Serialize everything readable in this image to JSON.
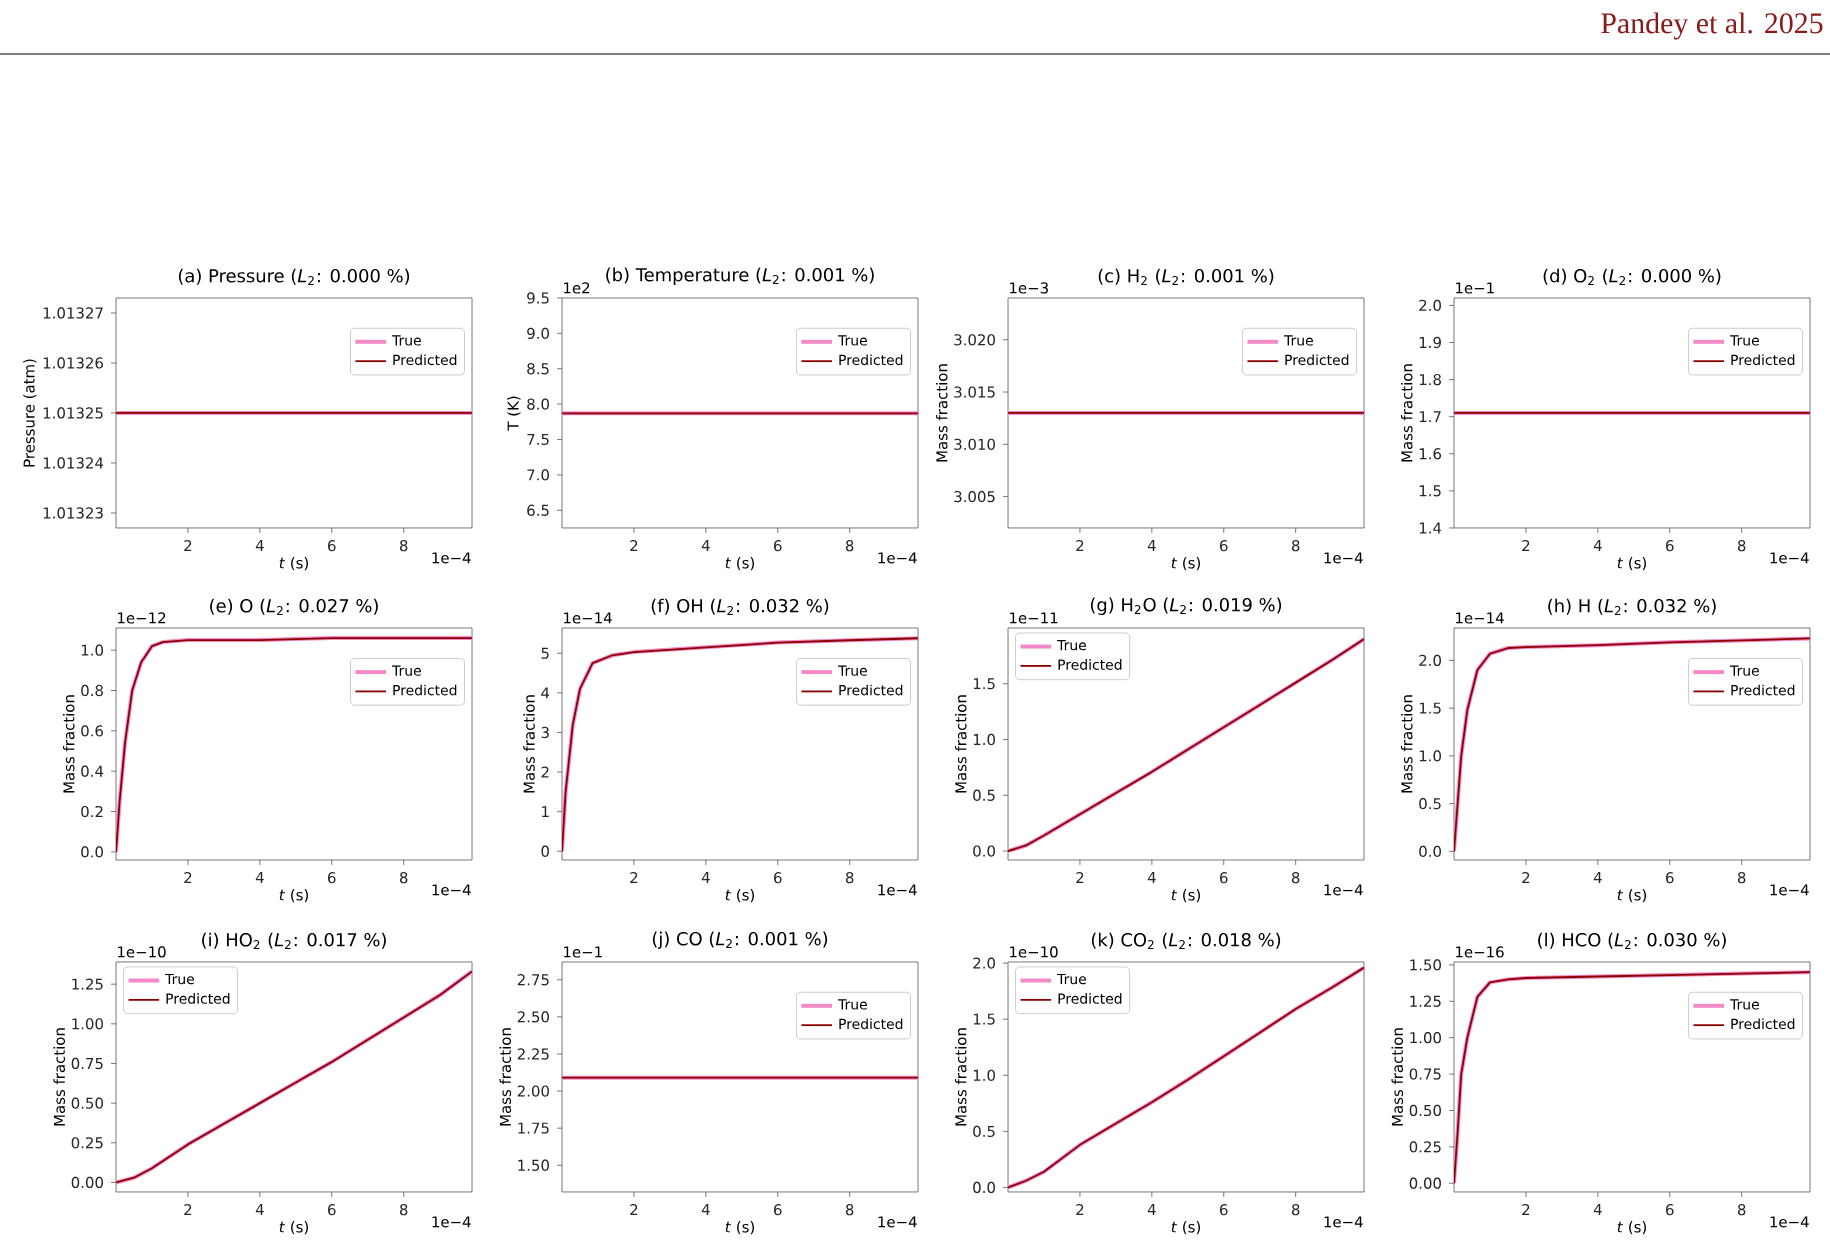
{
  "chart_data": [
    {
      "type": "line",
      "title": "(a) Pressure (*L*$_{2}$: 0.000 %)",
      "xlabel": "*t* (s)",
      "ylabel": "Pressure (atm)",
      "x": [
        0,
        9.9
      ],
      "xlim": [
        0,
        9.9
      ],
      "xticks": [
        2,
        4,
        6,
        8
      ],
      "ylim": [
        1.013227,
        1.013273
      ],
      "yticks": [
        1.01323,
        1.01324,
        1.01325,
        1.01326,
        1.01327
      ],
      "legend": "top right",
      "annotations": [
        "1e−4",
        "Pandey et al. 2025"
      ],
      "series": [
        {
          "name": "True",
          "color": "#f38ac8",
          "values": [
            1.01325,
            1.01325
          ]
        },
        {
          "name": "Predicted",
          "color": "#8b0000",
          "values": [
            1.01325,
            1.01325
          ]
        }
      ]
    },
    {
      "type": "line",
      "title": "(b) Temperature (*L*$_{2}$: 0.001 %)",
      "xlabel": "*t* (s)",
      "ylabel": "T (K)",
      "x": [
        0,
        9.9
      ],
      "xlim": [
        0,
        9.9
      ],
      "xticks": [
        2,
        4,
        6,
        8
      ],
      "ylim": [
        6.25,
        9.5
      ],
      "yticks": [
        6.5,
        {
          "value": 7,
          "label": "7.0"
        },
        7.5,
        {
          "value": 8,
          "label": "8.0"
        },
        8.5,
        {
          "value": 9,
          "label": "9.0"
        },
        9.5
      ],
      "legend": "top right",
      "annotations": [
        "1e−4",
        "1e2"
      ],
      "series": [
        {
          "name": "True",
          "color": "#f38ac8",
          "values": [
            7.87,
            7.87
          ]
        },
        {
          "name": "Predicted",
          "color": "#8b0000",
          "values": [
            7.87,
            7.87
          ]
        }
      ]
    },
    {
      "type": "line",
      "title": "(c) H$_{2}$ (*L*$_{2}$: 0.001 %)",
      "xlabel": "*t* (s)",
      "ylabel": "Mass fraction",
      "x": [
        0,
        9.9
      ],
      "xlim": [
        0,
        9.9
      ],
      "xticks": [
        2,
        4,
        6,
        8
      ],
      "ylim": [
        3.002,
        3.024
      ],
      "yticks": [
        3.005,
        {
          "value": 3.01,
          "label": "3.010"
        },
        3.015,
        {
          "value": 3.02,
          "label": "3.020"
        }
      ],
      "legend": "top right",
      "annotations": [
        "1e−4",
        "1e−3"
      ],
      "series": [
        {
          "name": "True",
          "color": "#f38ac8",
          "values": [
            3.013,
            3.013
          ]
        },
        {
          "name": "Predicted",
          "color": "#8b0000",
          "values": [
            3.013,
            3.013
          ]
        }
      ]
    },
    {
      "type": "line",
      "title": "(d) O$_{2}$ (*L*$_{2}$: 0.000 %)",
      "xlabel": "*t* (s)",
      "ylabel": "Mass fraction",
      "x": [
        0,
        9.9
      ],
      "xlim": [
        0,
        9.9
      ],
      "xticks": [
        2,
        4,
        6,
        8
      ],
      "ylim": [
        1.4,
        2.02
      ],
      "yticks": [
        1.4,
        1.5,
        1.6,
        1.7,
        1.8,
        1.9,
        {
          "value": 2,
          "label": "2.0"
        }
      ],
      "legend": "top right",
      "annotations": [
        "1e−4",
        "1e−1"
      ],
      "series": [
        {
          "name": "True",
          "color": "#f38ac8",
          "values": [
            1.71,
            1.71
          ]
        },
        {
          "name": "Predicted",
          "color": "#8b0000",
          "values": [
            1.71,
            1.71
          ]
        }
      ]
    },
    {
      "type": "line",
      "title": "(e) O (*L*$_{2}$: 0.027 %)",
      "xlabel": "*t* (s)",
      "ylabel": "Mass fraction",
      "x": [
        0,
        0.1,
        0.25,
        0.45,
        0.7,
        1.0,
        1.3,
        2,
        4,
        6,
        8,
        9.9
      ],
      "xlim": [
        0,
        9.9
      ],
      "xticks": [
        2,
        4,
        6,
        8
      ],
      "ylim": [
        -0.04,
        1.11
      ],
      "yticks": [
        {
          "value": 0,
          "label": "0.0"
        },
        0.2,
        0.4,
        0.6,
        0.8,
        {
          "value": 1,
          "label": "1.0"
        }
      ],
      "legend": "top right",
      "annotations": [
        "1e−4",
        "1e−12"
      ],
      "series": [
        {
          "name": "True",
          "color": "#f38ac8",
          "values": [
            0,
            0.25,
            0.54,
            0.8,
            0.94,
            1.02,
            1.04,
            1.05,
            1.05,
            1.06,
            1.06,
            1.06
          ]
        },
        {
          "name": "Predicted",
          "color": "#8b0000",
          "values": [
            0,
            0.25,
            0.54,
            0.8,
            0.94,
            1.02,
            1.04,
            1.05,
            1.05,
            1.06,
            1.06,
            1.06
          ]
        }
      ]
    },
    {
      "type": "line",
      "title": "(f) OH (*L*$_{2}$: 0.032 %)",
      "xlabel": "*t* (s)",
      "ylabel": "Mass fraction",
      "x": [
        0,
        0.1,
        0.3,
        0.5,
        0.85,
        1.4,
        2,
        4,
        6,
        8,
        9.9
      ],
      "xlim": [
        0,
        9.9
      ],
      "xticks": [
        2,
        4,
        6,
        8
      ],
      "ylim": [
        -0.22,
        5.64
      ],
      "yticks": [
        0,
        1,
        2,
        3,
        4,
        5
      ],
      "legend": "top right",
      "annotations": [
        "1e−4",
        "1e−14"
      ],
      "series": [
        {
          "name": "True",
          "color": "#f38ac8",
          "values": [
            0,
            1.5,
            3.2,
            4.1,
            4.75,
            4.95,
            5.03,
            5.15,
            5.27,
            5.33,
            5.38
          ]
        },
        {
          "name": "Predicted",
          "color": "#8b0000",
          "values": [
            0,
            1.5,
            3.2,
            4.1,
            4.75,
            4.95,
            5.03,
            5.15,
            5.27,
            5.33,
            5.38
          ]
        }
      ]
    },
    {
      "type": "line",
      "title": "(g) H$_{2}$O (*L*$_{2}$: 0.019 %)",
      "xlabel": "*t* (s)",
      "ylabel": "Mass fraction",
      "x": [
        0,
        0.5,
        1,
        2,
        3,
        4,
        5,
        6,
        7,
        8,
        9,
        9.9
      ],
      "xlim": [
        0,
        9.9
      ],
      "xticks": [
        2,
        4,
        6,
        8
      ],
      "ylim": [
        -0.08,
        2.0
      ],
      "yticks": [
        {
          "value": 0,
          "label": "0.0"
        },
        0.5,
        {
          "value": 1,
          "label": "1.0"
        },
        1.5
      ],
      "legend": "top left",
      "annotations": [
        "1e−4",
        "1e−11"
      ],
      "series": [
        {
          "name": "True",
          "color": "#f38ac8",
          "values": [
            0,
            0.05,
            0.14,
            0.33,
            0.52,
            0.71,
            0.91,
            1.11,
            1.31,
            1.51,
            1.71,
            1.9
          ]
        },
        {
          "name": "Predicted",
          "color": "#8b0000",
          "values": [
            0,
            0.05,
            0.14,
            0.33,
            0.52,
            0.71,
            0.91,
            1.11,
            1.31,
            1.51,
            1.71,
            1.9
          ]
        }
      ]
    },
    {
      "type": "line",
      "title": "(h) H (*L*$_{2}$: 0.032 %)",
      "xlabel": "*t* (s)",
      "ylabel": "Mass fraction",
      "x": [
        0,
        0.1,
        0.2,
        0.37,
        0.65,
        1.0,
        1.5,
        2,
        4,
        6,
        8,
        9.9
      ],
      "xlim": [
        0,
        9.9
      ],
      "xticks": [
        2,
        4,
        6,
        8
      ],
      "ylim": [
        -0.09,
        2.34
      ],
      "yticks": [
        {
          "value": 0,
          "label": "0.0"
        },
        0.5,
        {
          "value": 1,
          "label": "1.0"
        },
        1.5,
        {
          "value": 2,
          "label": "2.0"
        }
      ],
      "legend": "top right",
      "annotations": [
        "1e−4",
        "1e−14"
      ],
      "series": [
        {
          "name": "True",
          "color": "#f38ac8",
          "values": [
            0,
            0.5,
            1.0,
            1.48,
            1.9,
            2.07,
            2.13,
            2.14,
            2.16,
            2.19,
            2.21,
            2.23
          ]
        },
        {
          "name": "Predicted",
          "color": "#8b0000",
          "values": [
            0,
            0.5,
            1.0,
            1.48,
            1.9,
            2.07,
            2.13,
            2.14,
            2.16,
            2.19,
            2.21,
            2.23
          ]
        }
      ]
    },
    {
      "type": "line",
      "title": "(i) HO$_{2}$ (*L*$_{2}$: 0.017 %)",
      "xlabel": "*t* (s)",
      "ylabel": "Mass fraction",
      "x": [
        0,
        0.5,
        1,
        2,
        3,
        4,
        5,
        6,
        7,
        8,
        9,
        9.9
      ],
      "xlim": [
        0,
        9.9
      ],
      "xticks": [
        2,
        4,
        6,
        8
      ],
      "ylim": [
        -0.06,
        1.39
      ],
      "yticks": [
        {
          "value": 0,
          "label": "0.00"
        },
        0.25,
        {
          "value": 0.5,
          "label": "0.50"
        },
        0.75,
        {
          "value": 1,
          "label": "1.00"
        },
        1.25
      ],
      "legend": "top left",
      "annotations": [
        "1e−4",
        "1e−10"
      ],
      "series": [
        {
          "name": "True",
          "color": "#f38ac8",
          "values": [
            0,
            0.03,
            0.09,
            0.24,
            0.37,
            0.5,
            0.63,
            0.76,
            0.9,
            1.04,
            1.18,
            1.33
          ]
        },
        {
          "name": "Predicted",
          "color": "#8b0000",
          "values": [
            0,
            0.03,
            0.09,
            0.24,
            0.37,
            0.5,
            0.63,
            0.76,
            0.9,
            1.04,
            1.18,
            1.33
          ]
        }
      ]
    },
    {
      "type": "line",
      "title": "(j) CO (*L*$_{2}$: 0.001 %)",
      "xlabel": "*t* (s)",
      "ylabel": "Mass fraction",
      "x": [
        0,
        9.9
      ],
      "xlim": [
        0,
        9.9
      ],
      "xticks": [
        2,
        4,
        6,
        8
      ],
      "ylim": [
        1.32,
        2.87
      ],
      "yticks": [
        {
          "value": 1.5,
          "label": "1.50"
        },
        1.75,
        {
          "value": 2,
          "label": "2.00"
        },
        2.25,
        {
          "value": 2.5,
          "label": "2.50"
        },
        2.75
      ],
      "legend": "top right",
      "annotations": [
        "1e−4",
        "1e−1"
      ],
      "series": [
        {
          "name": "True",
          "color": "#f38ac8",
          "values": [
            2.09,
            2.09
          ]
        },
        {
          "name": "Predicted",
          "color": "#8b0000",
          "values": [
            2.09,
            2.09
          ]
        }
      ]
    },
    {
      "type": "line",
      "title": "(k) CO$_{2}$ (*L*$_{2}$: 0.018 %)",
      "xlabel": "*t* (s)",
      "ylabel": "Mass fraction",
      "x": [
        0,
        0.5,
        1,
        2,
        3,
        4,
        5,
        6,
        7,
        8,
        9,
        9.9
      ],
      "xlim": [
        0,
        9.9
      ],
      "xticks": [
        2,
        4,
        6,
        8
      ],
      "ylim": [
        -0.04,
        2.01
      ],
      "yticks": [
        {
          "value": 0,
          "label": "0.0"
        },
        0.5,
        {
          "value": 1,
          "label": "1.0"
        },
        1.5,
        {
          "value": 2,
          "label": "2.0"
        }
      ],
      "legend": "top left",
      "annotations": [
        "1e−4",
        "1e−10"
      ],
      "series": [
        {
          "name": "True",
          "color": "#f38ac8",
          "values": [
            0,
            0.06,
            0.14,
            0.38,
            0.57,
            0.76,
            0.96,
            1.17,
            1.38,
            1.59,
            1.78,
            1.96
          ]
        },
        {
          "name": "Predicted",
          "color": "#8b0000",
          "values": [
            0,
            0.06,
            0.14,
            0.38,
            0.57,
            0.76,
            0.96,
            1.17,
            1.38,
            1.59,
            1.78,
            1.96
          ]
        }
      ]
    },
    {
      "type": "line",
      "title": "(l) HCO (*L*$_{2}$: 0.030 %)",
      "xlabel": "*t* (s)",
      "ylabel": "Mass fraction",
      "x": [
        0,
        0.1,
        0.2,
        0.37,
        0.65,
        1.0,
        1.5,
        2,
        4,
        6,
        8,
        9.9
      ],
      "xlim": [
        0,
        9.9
      ],
      "xticks": [
        2,
        4,
        6,
        8
      ],
      "ylim": [
        -0.06,
        1.52
      ],
      "yticks": [
        {
          "value": 0,
          "label": "0.00"
        },
        0.25,
        {
          "value": 0.5,
          "label": "0.50"
        },
        0.75,
        {
          "value": 1,
          "label": "1.00"
        },
        1.25,
        {
          "value": 1.5,
          "label": "1.50"
        }
      ],
      "legend": "top right",
      "annotations": [
        "1e−4",
        "1e−16"
      ],
      "series": [
        {
          "name": "True",
          "color": "#f38ac8",
          "values": [
            0,
            0.35,
            0.75,
            1.0,
            1.28,
            1.38,
            1.4,
            1.41,
            1.42,
            1.43,
            1.44,
            1.45
          ]
        },
        {
          "name": "Predicted",
          "color": "#8b0000",
          "values": [
            0,
            0.35,
            0.75,
            1.0,
            1.28,
            1.38,
            1.4,
            1.41,
            1.42,
            1.43,
            1.44,
            1.45
          ]
        }
      ]
    }
  ]
}
